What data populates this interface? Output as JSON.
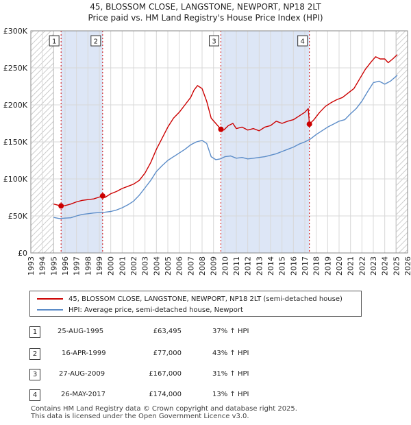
{
  "header": {
    "title_line1": "45, BLOSSOM CLOSE, LANGSTONE, NEWPORT, NP18 2LT",
    "title_line2": "Price paid vs. HM Land Registry's House Price Index (HPI)"
  },
  "colors": {
    "property": "#cc0000",
    "hpi": "#5b8cc8",
    "shade": "#dde6f6",
    "grid": "#d8d8d8"
  },
  "legend": {
    "property_label": "45, BLOSSOM CLOSE, LANGSTONE, NEWPORT, NP18 2LT (semi-detached house)",
    "hpi_label": "HPI: Average price, semi-detached house, Newport"
  },
  "sales": [
    {
      "num": "1",
      "date": "25-AUG-1995",
      "price": "£63,495",
      "hpi": "37% ↑ HPI"
    },
    {
      "num": "2",
      "date": "16-APR-1999",
      "price": "£77,000",
      "hpi": "43% ↑ HPI"
    },
    {
      "num": "3",
      "date": "27-AUG-2009",
      "price": "£167,000",
      "hpi": "31% ↑ HPI"
    },
    {
      "num": "4",
      "date": "26-MAY-2017",
      "price": "£174,000",
      "hpi": "13% ↑ HPI"
    }
  ],
  "footer": {
    "line1": "Contains HM Land Registry data © Crown copyright and database right 2025.",
    "line2": "This data is licensed under the Open Government Licence v3.0."
  },
  "chart_data": {
    "type": "line",
    "title": "45, BLOSSOM CLOSE, LANGSTONE, NEWPORT, NP18 2LT Price paid vs. HM Land Registry's House Price Index (HPI)",
    "xlim": [
      1993,
      2026
    ],
    "ylim": [
      0,
      300000
    ],
    "x_ticks": [
      1993,
      1994,
      1995,
      1996,
      1997,
      1998,
      1999,
      2000,
      2001,
      2002,
      2003,
      2004,
      2005,
      2006,
      2007,
      2008,
      2009,
      2010,
      2011,
      2012,
      2013,
      2014,
      2015,
      2016,
      2017,
      2018,
      2019,
      2020,
      2021,
      2022,
      2023,
      2024,
      2025,
      2026
    ],
    "y_ticks": [
      {
        "value": 0,
        "label": "£0"
      },
      {
        "value": 50000,
        "label": "£50K"
      },
      {
        "value": 100000,
        "label": "£100K"
      },
      {
        "value": 150000,
        "label": "£150K"
      },
      {
        "value": 200000,
        "label": "£200K"
      },
      {
        "value": 250000,
        "label": "£250K"
      },
      {
        "value": 300000,
        "label": "£300K"
      }
    ],
    "hatched_ranges": [
      [
        1993,
        1995.0
      ],
      [
        2025.0,
        2026
      ]
    ],
    "shaded_ranges": [
      [
        1995.65,
        1999.29
      ],
      [
        2009.65,
        2017.4
      ]
    ],
    "sale_markers": [
      {
        "label": "1",
        "x": 1995.65,
        "y": 63495
      },
      {
        "label": "2",
        "x": 1999.29,
        "y": 77000
      },
      {
        "label": "3",
        "x": 2009.65,
        "y": 167000
      },
      {
        "label": "4",
        "x": 2017.4,
        "y": 174000
      }
    ],
    "series": [
      {
        "name": "45, BLOSSOM CLOSE, LANGSTONE, NEWPORT, NP18 2LT (semi-detached house)",
        "x": [
          1995.0,
          1995.65,
          1996.0,
          1996.5,
          1997.0,
          1997.5,
          1998.0,
          1998.5,
          1999.0,
          1999.29,
          1999.5,
          2000.0,
          2000.5,
          2001.0,
          2001.5,
          2002.0,
          2002.5,
          2003.0,
          2003.5,
          2004.0,
          2004.5,
          2005.0,
          2005.5,
          2006.0,
          2006.5,
          2007.0,
          2007.3,
          2007.6,
          2008.0,
          2008.4,
          2008.8,
          2009.2,
          2009.65,
          2009.9,
          2010.3,
          2010.7,
          2011.0,
          2011.5,
          2012.0,
          2012.5,
          2013.0,
          2013.5,
          2014.0,
          2014.5,
          2015.0,
          2015.5,
          2016.0,
          2016.5,
          2017.0,
          2017.3,
          2017.4,
          2017.8,
          2018.3,
          2018.8,
          2019.3,
          2019.8,
          2020.3,
          2020.8,
          2021.3,
          2021.8,
          2022.3,
          2022.8,
          2023.2,
          2023.6,
          2024.0,
          2024.3,
          2024.7,
          2025.1
        ],
        "y": [
          66000,
          63495,
          64000,
          66000,
          69000,
          71000,
          72000,
          73000,
          75500,
          77000,
          75000,
          80000,
          83000,
          87000,
          90000,
          93000,
          98000,
          108000,
          122000,
          140000,
          155000,
          170000,
          182000,
          190000,
          200000,
          210000,
          220000,
          226000,
          222000,
          205000,
          182000,
          175000,
          167000,
          166000,
          172000,
          175000,
          168000,
          170000,
          166000,
          168000,
          165000,
          170000,
          172000,
          178000,
          175000,
          178000,
          180000,
          185000,
          190000,
          195000,
          174000,
          180000,
          190000,
          198000,
          203000,
          207000,
          210000,
          216000,
          222000,
          235000,
          248000,
          258000,
          265000,
          262000,
          262000,
          257000,
          262000,
          268000
        ]
      },
      {
        "name": "HPI: Average price, semi-detached house, Newport",
        "x": [
          1995.0,
          1995.5,
          1996.0,
          1996.5,
          1997.0,
          1997.5,
          1998.0,
          1998.5,
          1999.0,
          1999.5,
          2000.0,
          2000.5,
          2001.0,
          2001.5,
          2002.0,
          2002.5,
          2003.0,
          2003.5,
          2004.0,
          2004.5,
          2005.0,
          2005.5,
          2006.0,
          2006.5,
          2007.0,
          2007.5,
          2008.0,
          2008.4,
          2008.8,
          2009.2,
          2009.6,
          2010.0,
          2010.5,
          2011.0,
          2011.5,
          2012.0,
          2012.5,
          2013.0,
          2013.5,
          2014.0,
          2014.5,
          2015.0,
          2015.5,
          2016.0,
          2016.5,
          2017.0,
          2017.5,
          2018.0,
          2018.5,
          2019.0,
          2019.5,
          2020.0,
          2020.5,
          2021.0,
          2021.5,
          2022.0,
          2022.5,
          2023.0,
          2023.5,
          2024.0,
          2024.5,
          2025.1
        ],
        "y": [
          48000,
          46500,
          47000,
          47500,
          50000,
          52000,
          53000,
          54000,
          54500,
          55000,
          56000,
          58000,
          61000,
          65000,
          70000,
          78000,
          88000,
          98000,
          110000,
          118000,
          125000,
          130000,
          135000,
          140000,
          146000,
          150000,
          152000,
          148000,
          130000,
          126000,
          127000,
          130000,
          131000,
          128000,
          129000,
          127000,
          128000,
          129000,
          130000,
          132000,
          134000,
          137000,
          140000,
          143000,
          147000,
          150000,
          154000,
          160000,
          165000,
          170000,
          174000,
          178000,
          180000,
          188000,
          195000,
          205000,
          218000,
          230000,
          232000,
          228000,
          232000,
          240000
        ]
      }
    ]
  }
}
